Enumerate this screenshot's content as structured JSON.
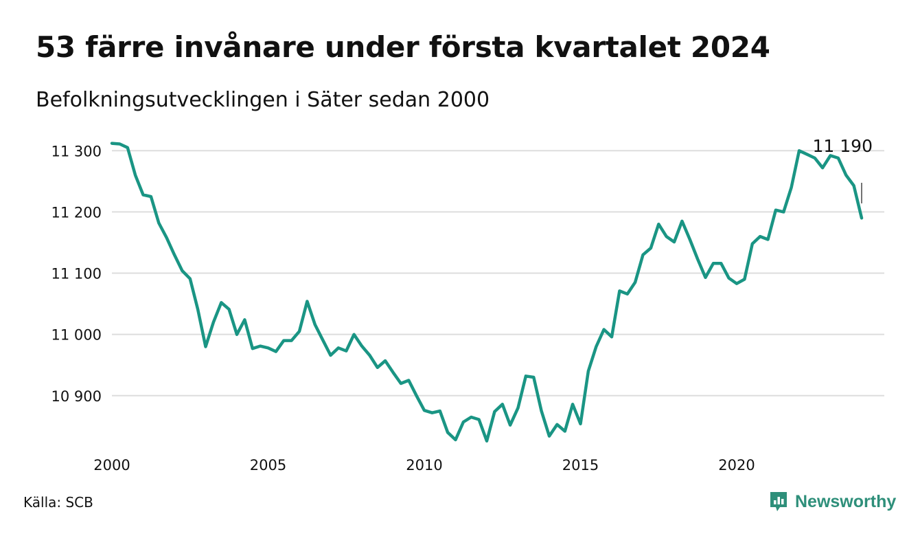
{
  "header": {
    "title": "53 färre invånare under första kvartalet 2024",
    "subtitle": "Befolkningsutvecklingen i Säter sedan 2000"
  },
  "footer": {
    "source": "Källa: SCB",
    "brand": "Newsworthy"
  },
  "colors": {
    "line": "#1a9584",
    "grid": "#dddddd",
    "brand": "#2e8f7a"
  },
  "chart_data": {
    "type": "line",
    "title": "53 färre invånare under första kvartalet 2024",
    "subtitle": "Befolkningsutvecklingen i Säter sedan 2000",
    "xlabel": "",
    "ylabel": "",
    "x_ticks": [
      2000,
      2005,
      2010,
      2015,
      2020
    ],
    "y_ticks": [
      10900,
      11000,
      11100,
      11200,
      11300
    ],
    "y_tick_labels": [
      "10 900",
      "11 000",
      "11 100",
      "11 200",
      "11 300"
    ],
    "x_range": [
      2000,
      2024
    ],
    "y_range": [
      10810,
      11325
    ],
    "grid": "horizontal",
    "end_label": "11 190",
    "series": [
      {
        "x": [
          2000.0,
          2000.25,
          2000.5,
          2000.75,
          2001.0,
          2001.25,
          2001.5,
          2001.75,
          2002.0,
          2002.25,
          2002.5,
          2002.75,
          2003.0,
          2003.25,
          2003.5,
          2003.75,
          2004.0,
          2004.25,
          2004.5,
          2004.75,
          2005.0,
          2005.25,
          2005.5,
          2005.75,
          2006.0,
          2006.25,
          2006.5,
          2006.75,
          2007.0,
          2007.25,
          2007.5,
          2007.75,
          2008.0,
          2008.25,
          2008.5,
          2008.75,
          2009.0,
          2009.25,
          2009.5,
          2009.75,
          2010.0,
          2010.25,
          2010.5,
          2010.75,
          2011.0,
          2011.25,
          2011.5,
          2011.75,
          2012.0,
          2012.25,
          2012.5,
          2012.75,
          2013.0,
          2013.25,
          2013.5,
          2013.75,
          2014.0,
          2014.25,
          2014.5,
          2014.75,
          2015.0,
          2015.25,
          2015.5,
          2015.75,
          2016.0,
          2016.25,
          2016.5,
          2016.75,
          2017.0,
          2017.25,
          2017.5,
          2017.75,
          2018.0,
          2018.25,
          2018.5,
          2018.75,
          2019.0,
          2019.25,
          2019.5,
          2019.75,
          2020.0,
          2020.25,
          2020.5,
          2020.75,
          2021.0,
          2021.25,
          2021.5,
          2021.75,
          2022.0,
          2022.25,
          2022.5,
          2022.75,
          2023.0,
          2023.25,
          2023.5,
          2023.75,
          2024.0
        ],
        "values": [
          11312,
          11311,
          11305,
          11260,
          11228,
          11225,
          11182,
          11158,
          11130,
          11104,
          11091,
          11041,
          10980,
          11020,
          11052,
          11041,
          11000,
          11024,
          10977,
          10981,
          10978,
          10972,
          10990,
          10990,
          11005,
          11054,
          11016,
          10991,
          10966,
          10978,
          10973,
          11000,
          10981,
          10966,
          10946,
          10957,
          10938,
          10920,
          10925,
          10900,
          10876,
          10872,
          10875,
          10840,
          10828,
          10857,
          10865,
          10861,
          10826,
          10874,
          10886,
          10852,
          10880,
          10932,
          10930,
          10875,
          10834,
          10853,
          10842,
          10886,
          10854,
          10940,
          10980,
          11008,
          10996,
          11071,
          11066,
          11085,
          11130,
          11141,
          11180,
          11160,
          11151,
          11185,
          11155,
          11123,
          11093,
          11116,
          11116,
          11092,
          11083,
          11090,
          11148,
          11160,
          11155,
          11203,
          11200,
          11240,
          11300,
          11294,
          11288,
          11272,
          11292,
          11288,
          11260,
          11243,
          11190
        ]
      }
    ]
  }
}
